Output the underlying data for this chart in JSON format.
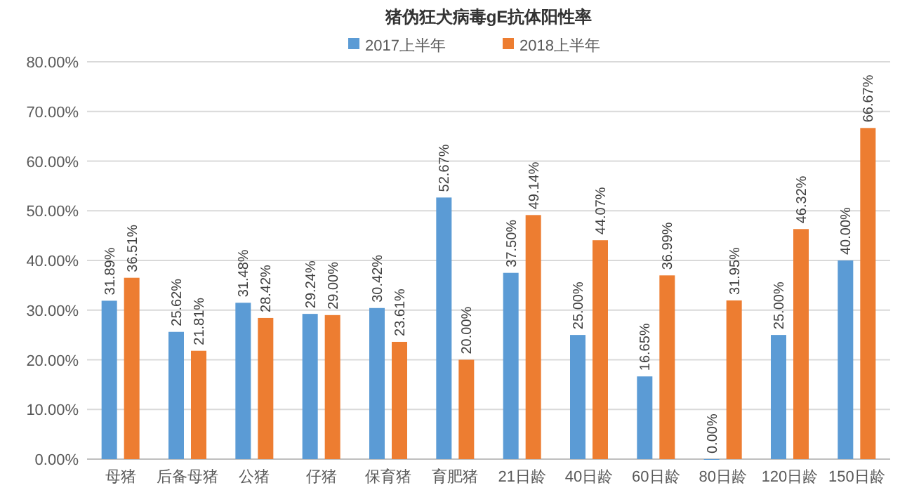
{
  "chart_data": {
    "type": "bar",
    "title": "猪伪狂犬病毒gE抗体阳性率",
    "categories": [
      "母猪",
      "后备母猪",
      "公猪",
      "仔猪",
      "保育猪",
      "育肥猪",
      "21日龄",
      "40日龄",
      "60日龄",
      "80日龄",
      "120日龄",
      "150日龄"
    ],
    "series": [
      {
        "name": "2017上半年",
        "color": "#5b9bd5",
        "values": [
          31.89,
          25.62,
          31.48,
          29.24,
          30.42,
          52.67,
          37.5,
          25.0,
          16.65,
          0.0,
          25.0,
          40.0
        ],
        "value_labels": [
          "31.89%",
          "25.62%",
          "31.48%",
          "29.24%",
          "30.42%",
          "52.67%",
          "37.50%",
          "25.00%",
          "16.65%",
          "0.00%",
          "25.00%",
          "40.00%"
        ]
      },
      {
        "name": "2018上半年",
        "color": "#ed7d31",
        "values": [
          36.51,
          21.81,
          28.42,
          29.0,
          23.61,
          20.0,
          49.14,
          44.07,
          36.99,
          31.95,
          46.32,
          66.67
        ],
        "value_labels": [
          "36.51%",
          "21.81%",
          "28.42%",
          "29.00%",
          "23.61%",
          "20.00%",
          "49.14%",
          "44.07%",
          "36.99%",
          "31.95%",
          "46.32%",
          "66.67%"
        ]
      }
    ],
    "ylim": [
      0,
      80
    ],
    "yticks": [
      {
        "value": 0,
        "label": "0.00%"
      },
      {
        "value": 10,
        "label": "10.00%"
      },
      {
        "value": 20,
        "label": "20.00%"
      },
      {
        "value": 30,
        "label": "30.00%"
      },
      {
        "value": 40,
        "label": "40.00%"
      },
      {
        "value": 50,
        "label": "50.00%"
      },
      {
        "value": 60,
        "label": "60.00%"
      },
      {
        "value": 70,
        "label": "70.00%"
      },
      {
        "value": 80,
        "label": "80.00%"
      }
    ],
    "grid": "y",
    "legend": "top"
  }
}
